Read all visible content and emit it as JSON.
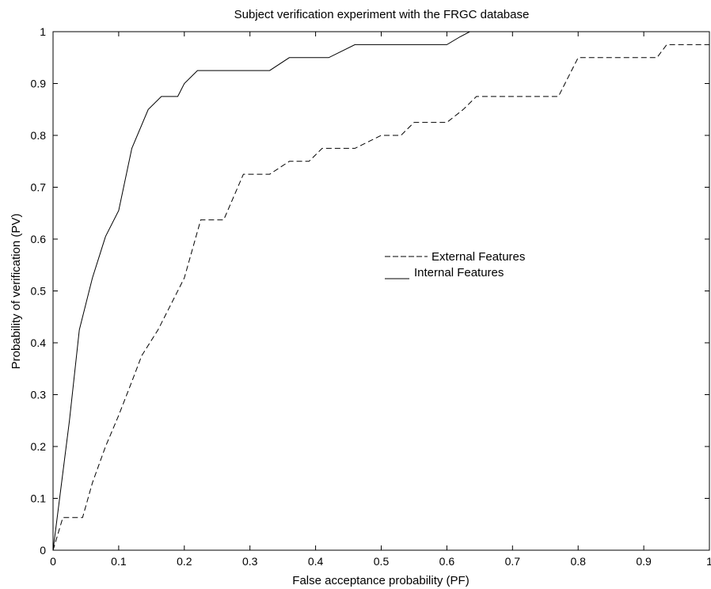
{
  "chart_data": {
    "type": "line",
    "title": "Subject verification experiment with the FRGC database",
    "xlabel": "False acceptance probability (PF)",
    "ylabel": "Probability of verification (PV)",
    "xlim": [
      0,
      1
    ],
    "ylim": [
      0,
      1
    ],
    "xticks": [
      "0",
      "0.1",
      "0.2",
      "0.3",
      "0.4",
      "0.5",
      "0.6",
      "0.7",
      "0.8",
      "0.9",
      "1"
    ],
    "yticks": [
      "0",
      "0.1",
      "0.2",
      "0.3",
      "0.4",
      "0.5",
      "0.6",
      "0.7",
      "0.8",
      "0.9",
      "1"
    ],
    "grid": false,
    "legend_position": "center",
    "series": [
      {
        "name": "External Features",
        "line_style": "dashed",
        "color": "#000000",
        "x": [
          0.0,
          0.015,
          0.045,
          0.06,
          0.08,
          0.1,
          0.12,
          0.135,
          0.16,
          0.18,
          0.2,
          0.225,
          0.26,
          0.29,
          0.33,
          0.36,
          0.39,
          0.41,
          0.46,
          0.5,
          0.53,
          0.55,
          0.6,
          0.625,
          0.645,
          0.77,
          0.78,
          0.8,
          0.92,
          0.935,
          1.0
        ],
        "y": [
          0.0,
          0.063,
          0.063,
          0.13,
          0.2,
          0.26,
          0.325,
          0.375,
          0.425,
          0.475,
          0.525,
          0.637,
          0.637,
          0.725,
          0.725,
          0.75,
          0.75,
          0.775,
          0.775,
          0.8,
          0.8,
          0.825,
          0.825,
          0.85,
          0.875,
          0.875,
          0.9,
          0.95,
          0.95,
          0.975,
          0.975
        ]
      },
      {
        "name": "Internal Features",
        "line_style": "solid",
        "color": "#000000",
        "x": [
          0.0,
          0.01,
          0.025,
          0.04,
          0.06,
          0.08,
          0.1,
          0.12,
          0.145,
          0.165,
          0.175,
          0.19,
          0.2,
          0.22,
          0.275,
          0.33,
          0.36,
          0.42,
          0.46,
          0.6,
          0.62,
          0.635,
          1.0
        ],
        "y": [
          0.0,
          0.1,
          0.25,
          0.425,
          0.525,
          0.605,
          0.655,
          0.775,
          0.85,
          0.875,
          0.875,
          0.875,
          0.9,
          0.925,
          0.925,
          0.925,
          0.95,
          0.95,
          0.975,
          0.975,
          0.99,
          1.0,
          1.0
        ]
      }
    ]
  }
}
